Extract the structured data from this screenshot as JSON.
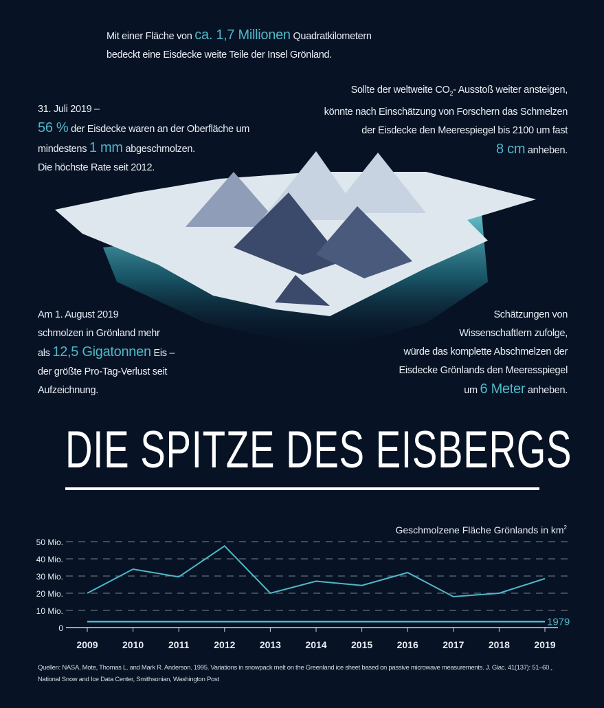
{
  "facts": {
    "top": {
      "pre": "Mit einer Fläche von",
      "accent": "ca. 1,7 Millionen",
      "post": "Quadratkilometern",
      "line2": "bedeckt eine Eisdecke weite Teile der Insel Grönland."
    },
    "left1": {
      "line1": "31. Juli  2019 –",
      "accent1": "56 %",
      "l2": "der Eisdecke waren an der Oberfläche um",
      "l3pre": "mindestens",
      "accent2": "1 mm",
      "l3post": "abgeschmolzen.",
      "l4": "Die höchste Rate seit 2012."
    },
    "right1": {
      "l1a": "Sollte der weltweite CO",
      "sub": "2",
      "l1b": "- Ausstoß weiter ansteigen,",
      "l2": "könnte nach Einschätzung von Forschern das Schmelzen",
      "l3": "der Eisdecke den Meerespiegel bis 2100 um fast",
      "accent": "8 cm",
      "post": "anheben."
    },
    "left2": {
      "l1": "Am 1. August 2019",
      "l2": "schmolzen in Grönland mehr",
      "l3pre": "als",
      "accent": "12,5 Gigatonnen",
      "l3post": "Eis –",
      "l4": "der größte Pro-Tag-Verlust seit",
      "l5": "Aufzeichnung."
    },
    "right2": {
      "l1": "Schätzungen von",
      "l2": "Wissenschaftlern zufolge,",
      "l3": "würde das komplette Abschmelzen der",
      "l4": "Eisdecke Grönlands den Meeresspiegel",
      "pre": "um",
      "accent": "6 Meter",
      "post": "anheben."
    }
  },
  "title": "DIE SPITZE DES EISBERGS",
  "chart_data": {
    "type": "line",
    "title": "Geschmolzene Fläche Grönlands in km²",
    "title_main": "Geschmolzene Fläche Grönlands in km",
    "title_sup": "2",
    "categories": [
      "2009",
      "2010",
      "2011",
      "2012",
      "2013",
      "2014",
      "2015",
      "2016",
      "2017",
      "2018",
      "2019"
    ],
    "series": [
      {
        "name": "Geschmolzene Fläche (Mio. km²)",
        "values": [
          20,
          34,
          29.5,
          47.5,
          20,
          27,
          24.5,
          32,
          18,
          20,
          28.5
        ]
      }
    ],
    "reference": {
      "label": "1979",
      "value": 3.5
    },
    "yticks": [
      {
        "v": 0,
        "label": "0"
      },
      {
        "v": 10,
        "label": "10 Mio."
      },
      {
        "v": 20,
        "label": "20 Mio."
      },
      {
        "v": 30,
        "label": "30 Mio."
      },
      {
        "v": 40,
        "label": "40 Mio."
      },
      {
        "v": 50,
        "label": "50 Mio."
      }
    ],
    "ylim": [
      0,
      50
    ],
    "grid": true,
    "colors": {
      "line": "#4fb8c8",
      "grid": "#7a8494",
      "axis": "#cfd5dc"
    }
  },
  "sources": {
    "l1": "Quellen: NASA, Mote, Thomas L. and Mark R. Anderson. 1995. Variations in snowpack melt on the Greenland ice sheet based on passive microwave measurements. J. Glac. 41(137): 51–60.,",
    "l2": "National Snow and Ice Data Center, Smithsonian, Washington Post"
  }
}
